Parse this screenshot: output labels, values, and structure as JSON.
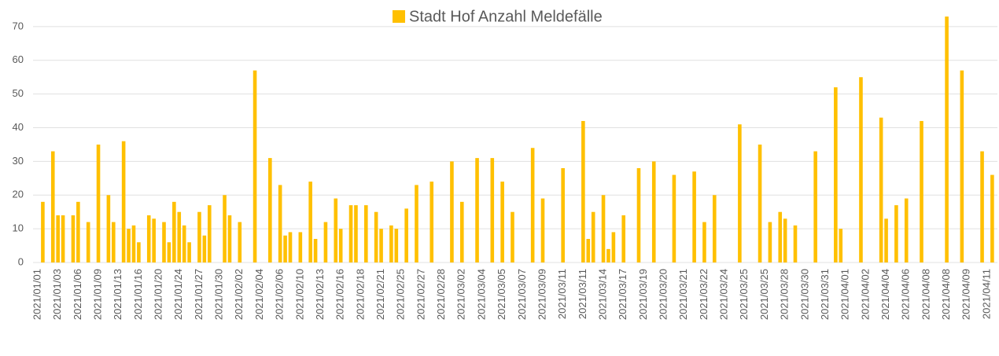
{
  "chart_data": {
    "type": "bar",
    "title": "Stadt Hof Anzahl Meldefälle",
    "color": "#ffc000",
    "categories": [
      "2021/01/01",
      null,
      null,
      null,
      "2021/01/03",
      null,
      null,
      null,
      "2021/01/06",
      null,
      null,
      null,
      "2021/01/09",
      null,
      null,
      null,
      "2021/01/13",
      null,
      null,
      null,
      "2021/01/16",
      null,
      null,
      null,
      "2021/01/20",
      null,
      null,
      null,
      "2021/01/24",
      null,
      null,
      null,
      "2021/01/27",
      null,
      null,
      null,
      "2021/01/30",
      null,
      null,
      null,
      "2021/02/02",
      null,
      null,
      null,
      "2021/02/04",
      null,
      null,
      null,
      "2021/02/06",
      null,
      null,
      null,
      "2021/02/10",
      null,
      null,
      null,
      "2021/02/13",
      null,
      null,
      null,
      "2021/02/16",
      null,
      null,
      null,
      "2021/02/18",
      null,
      null,
      null,
      "2021/02/21",
      null,
      null,
      null,
      "2021/02/25",
      null,
      null,
      null,
      "2021/02/27",
      null,
      null,
      null,
      "2021/02/28",
      null,
      null,
      null,
      "2021/03/02",
      null,
      null,
      null,
      "2021/03/04",
      null,
      null,
      null,
      "2021/03/05",
      null,
      null,
      null,
      "2021/03/07",
      null,
      null,
      null,
      "2021/03/09",
      null,
      null,
      null,
      "2021/03/11",
      null,
      null,
      null,
      "2021/03/11",
      null,
      null,
      null,
      "2021/03/14",
      null,
      null,
      null,
      "2021/03/17",
      null,
      null,
      null,
      "2021/03/19",
      null,
      null,
      null,
      "2021/03/20",
      null,
      null,
      null,
      "2021/03/21",
      null,
      null,
      null,
      "2021/03/22",
      null,
      null,
      null,
      "2021/03/24",
      null,
      null,
      null,
      "2021/03/25",
      null,
      null,
      null,
      "2021/03/25",
      null,
      null,
      null,
      "2021/03/28",
      null,
      null,
      null,
      "2021/03/30",
      null,
      null,
      null,
      "2021/03/31",
      null,
      null,
      null,
      "2021/04/01",
      null,
      null,
      null,
      "2021/04/02",
      null,
      null,
      null,
      "2021/04/04",
      null,
      null,
      null,
      "2021/04/06",
      null,
      null,
      null,
      "2021/04/08",
      null,
      null,
      null,
      "2021/04/08",
      null,
      null,
      null,
      "2021/04/09",
      null,
      null,
      null,
      "2021/04/11",
      null
    ],
    "values": [
      0,
      18,
      0,
      33,
      14,
      14,
      0,
      14,
      18,
      0,
      12,
      0,
      35,
      0,
      20,
      12,
      0,
      36,
      10,
      11,
      6,
      0,
      14,
      13,
      0,
      12,
      6,
      18,
      15,
      11,
      6,
      0,
      15,
      8,
      17,
      0,
      0,
      20,
      14,
      0,
      12,
      0,
      0,
      57,
      0,
      0,
      31,
      0,
      23,
      8,
      9,
      0,
      9,
      0,
      24,
      7,
      0,
      12,
      0,
      19,
      10,
      0,
      17,
      17,
      0,
      17,
      0,
      15,
      10,
      0,
      11,
      10,
      0,
      16,
      0,
      23,
      0,
      0,
      24,
      0,
      0,
      0,
      30,
      0,
      18,
      0,
      0,
      31,
      0,
      0,
      31,
      0,
      24,
      0,
      15,
      0,
      0,
      0,
      34,
      0,
      19,
      0,
      0,
      0,
      28,
      0,
      0,
      0,
      42,
      7,
      15,
      0,
      20,
      4,
      9,
      0,
      14,
      0,
      0,
      28,
      0,
      0,
      30,
      0,
      0,
      0,
      26,
      0,
      0,
      0,
      27,
      0,
      12,
      0,
      20,
      0,
      0,
      0,
      0,
      41,
      0,
      0,
      0,
      35,
      0,
      12,
      0,
      15,
      13,
      0,
      11,
      0,
      0,
      0,
      33,
      0,
      0,
      0,
      52,
      10,
      0,
      0,
      0,
      55,
      0,
      0,
      0,
      43,
      13,
      0,
      17,
      0,
      19,
      0,
      0,
      42,
      0,
      0,
      0,
      0,
      73,
      0,
      0,
      57,
      0,
      0,
      0,
      33,
      0,
      26
    ],
    "ylim": [
      0,
      75
    ],
    "yticks": [
      0,
      10,
      20,
      30,
      40,
      50,
      60,
      70
    ],
    "grid": true
  }
}
